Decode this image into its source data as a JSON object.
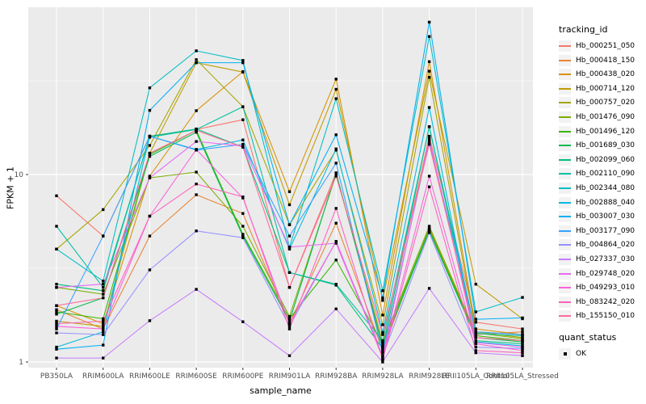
{
  "chart_data": {
    "type": "line",
    "title": "",
    "xlabel": "sample_name",
    "ylabel": "FPKM + 1",
    "y_scale": "log10",
    "y_ticks": [
      1,
      10
    ],
    "y_minor_ticks": [
      3.1623,
      31.623
    ],
    "ylim": [
      0.93,
      78
    ],
    "grid": true,
    "legend_position": "right",
    "categories": [
      "PB350LA",
      "RRIM600LA",
      "RRIM600LE",
      "RRIM600SE",
      "RRIM600PE",
      "RRIM901LA",
      "RRIM928BA",
      "RRIM928LA",
      "RRIM928LE",
      "RRII105LA_Control",
      "RRII105LA_Stressed"
    ],
    "series": [
      {
        "name": "Hb_000251_050",
        "color": "#F8766D",
        "values": [
          7.7,
          4.7,
          16,
          17.4,
          19.6,
          2.5,
          10.2,
          1.22,
          16,
          1.63,
          1.5
        ]
      },
      {
        "name": "Hb_000418_150",
        "color": "#EA8331",
        "values": [
          1.9,
          1.5,
          4.7,
          7.8,
          6.2,
          1.6,
          5.5,
          1.15,
          5.2,
          1.4,
          1.45
        ]
      },
      {
        "name": "Hb_000438_020",
        "color": "#D89000",
        "values": [
          2.0,
          1.6,
          9.8,
          21.9,
          35.4,
          8.1,
          32.3,
          1.78,
          40,
          1.5,
          1.4
        ]
      },
      {
        "name": "Hb_000714_120",
        "color": "#C09B00",
        "values": [
          1.65,
          1.55,
          13,
          39.5,
          35.2,
          6.9,
          28.5,
          2.13,
          35.6,
          2.6,
          1.7
        ]
      },
      {
        "name": "Hb_000757_020",
        "color": "#A3A500",
        "values": [
          4.0,
          6.5,
          14.3,
          41,
          23,
          5.4,
          13.5,
          1.58,
          33,
          1.45,
          1.35
        ]
      },
      {
        "name": "Hb_001476_090",
        "color": "#7CAE00",
        "values": [
          2.5,
          2.3,
          9.6,
          10.3,
          5.3,
          1.75,
          10.0,
          1.28,
          5.3,
          1.43,
          1.33
        ]
      },
      {
        "name": "Hb_001496_120",
        "color": "#39B600",
        "values": [
          1.85,
          1.7,
          12.8,
          17.2,
          4.8,
          1.7,
          3.5,
          1.25,
          5.1,
          1.38,
          1.3
        ]
      },
      {
        "name": "Hb_001689_030",
        "color": "#00BB4E",
        "values": [
          1.8,
          2.2,
          12.5,
          16.8,
          4.7,
          1.65,
          10.2,
          1.2,
          5.0,
          1.35,
          1.28
        ]
      },
      {
        "name": "Hb_002099_060",
        "color": "#00BF7D",
        "values": [
          2.6,
          2.4,
          16,
          17.5,
          14.0,
          3.0,
          2.57,
          1.18,
          18,
          1.3,
          1.25
        ]
      },
      {
        "name": "Hb_002110_090",
        "color": "#00C1A3",
        "values": [
          5.3,
          2.5,
          15.8,
          17.4,
          23,
          3.0,
          2.6,
          1.3,
          18,
          1.42,
          1.38
        ]
      },
      {
        "name": "Hb_002344_080",
        "color": "#00BFC4",
        "values": [
          4.0,
          2.7,
          29,
          45.7,
          40.6,
          4.1,
          25.4,
          2.4,
          54.5,
          1.85,
          2.21
        ]
      },
      {
        "name": "Hb_002888_040",
        "color": "#00BAE0",
        "values": [
          1.2,
          1.45,
          16,
          13.6,
          15.3,
          4.0,
          13.7,
          1.44,
          22.8,
          1.28,
          1.22
        ]
      },
      {
        "name": "Hb_003007_030",
        "color": "#00B0F6",
        "values": [
          1.17,
          1.23,
          22,
          39.5,
          39.5,
          5.4,
          16.3,
          2.2,
          65,
          1.69,
          1.72
        ]
      },
      {
        "name": "Hb_003177_090",
        "color": "#35A2FF",
        "values": [
          1.5,
          4.7,
          16,
          13.5,
          14.5,
          4.7,
          11.5,
          1.12,
          15,
          1.45,
          1.4
        ]
      },
      {
        "name": "Hb_004864_020",
        "color": "#9590FF",
        "values": [
          1.43,
          1.4,
          3.1,
          5.0,
          4.6,
          1.55,
          4.4,
          1.08,
          4.9,
          1.2,
          1.18
        ]
      },
      {
        "name": "Hb_027337_030",
        "color": "#C77CFF",
        "values": [
          1.05,
          1.05,
          1.66,
          2.44,
          1.64,
          1.08,
          1.92,
          1.0,
          2.47,
          1.12,
          1.08
        ]
      },
      {
        "name": "Hb_029748_020",
        "color": "#E76BF3",
        "values": [
          2.5,
          2.6,
          9.6,
          15,
          14.2,
          4.1,
          4.3,
          1.06,
          15.5,
          1.27,
          1.2
        ]
      },
      {
        "name": "Hb_049293_010",
        "color": "#FA62DB",
        "values": [
          1.55,
          1.5,
          6.0,
          13.6,
          7.5,
          1.6,
          4.4,
          1.05,
          9.8,
          1.25,
          1.15
        ]
      },
      {
        "name": "Hb_083242_020",
        "color": "#FF62BC",
        "values": [
          1.6,
          1.65,
          6.0,
          8.9,
          7.6,
          1.5,
          6.6,
          1.03,
          8.6,
          1.15,
          1.12
        ]
      },
      {
        "name": "Hb_155150_010",
        "color": "#FF6A98",
        "values": [
          2.0,
          2.2,
          13.0,
          17.2,
          14.0,
          2.5,
          9.8,
          1.4,
          14.5,
          1.35,
          1.3
        ]
      }
    ]
  },
  "legend": {
    "tracking_title": "tracking_id",
    "quant_title": "quant_status",
    "quant_items": [
      {
        "label": "OK",
        "symbol": "black-square",
        "color": "#000000"
      }
    ]
  },
  "styles": {
    "panel_bg": "#EBEBEB",
    "grid_major": "#FFFFFF",
    "grid_minor": "#F5F5F5",
    "tick_label_color": "#4D4D4D",
    "tick_mark_color": "#333333",
    "point_color": "#000000",
    "legend_key_bg": "#F2F2F2"
  }
}
